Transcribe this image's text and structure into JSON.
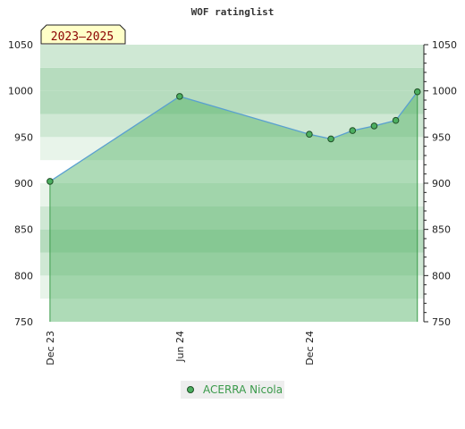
{
  "chart_data": {
    "type": "area",
    "title": "WOF ratinglist",
    "period_label": "2023–2025",
    "ylim": [
      750,
      1050
    ],
    "y_ticks": [
      750,
      800,
      850,
      900,
      950,
      1000,
      1050
    ],
    "x_ticks": [
      {
        "label": "Dec 23",
        "t": 0
      },
      {
        "label": "Jun 24",
        "t": 6
      },
      {
        "label": "Dec 24",
        "t": 12
      }
    ],
    "series": [
      {
        "name": "ACERRA Nicola",
        "points": [
          {
            "t": 0,
            "y": 902
          },
          {
            "t": 6,
            "y": 994
          },
          {
            "t": 12,
            "y": 953
          },
          {
            "t": 13,
            "y": 948
          },
          {
            "t": 14,
            "y": 957
          },
          {
            "t": 15,
            "y": 962
          },
          {
            "t": 16,
            "y": 968
          },
          {
            "t": 17,
            "y": 999
          }
        ]
      }
    ],
    "legend_position": "bottom-center",
    "colors": {
      "line": "#5aa0d0",
      "area": "#4caf60",
      "marker": "#3a8a4a",
      "badge_bg": "#ffffc8"
    }
  }
}
